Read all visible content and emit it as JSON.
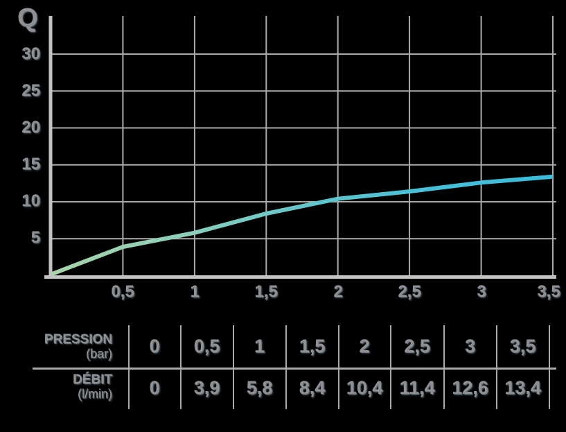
{
  "background": "#000000",
  "chart_data": {
    "type": "line",
    "title": "Q",
    "x": [
      0,
      0.5,
      1,
      1.5,
      2,
      2.5,
      3,
      3.5
    ],
    "series": [
      {
        "name": "debit-vs-pression",
        "values": [
          0,
          3.9,
          5.8,
          8.4,
          10.4,
          11.4,
          12.6,
          13.4
        ]
      }
    ],
    "xlabel": "",
    "ylabel": "",
    "xlim": [
      0,
      3.5
    ],
    "ylim": [
      0,
      35
    ],
    "grid": true,
    "legend": false,
    "yticks": [
      5,
      10,
      15,
      20,
      25,
      30
    ],
    "ytick_labels": [
      "30",
      "25",
      "20",
      "15",
      "10",
      "5"
    ],
    "xtick_labels": [
      "0,5",
      "1",
      "1,5",
      "2",
      "2,5",
      "3",
      "3,5"
    ],
    "colors": {
      "grid": "#ABABAB",
      "axis": "#C3C3C3",
      "text": "#8E9094",
      "line_gradient": [
        "#A6D4A8",
        "#8FCFB9",
        "#64C6CB",
        "#46C0D8",
        "#3ABCDC"
      ]
    }
  },
  "table": {
    "row_pression": {
      "label": "PRESSION",
      "unit": "(bar)",
      "values": [
        "0",
        "0,5",
        "1",
        "1,5",
        "2",
        "2,5",
        "3",
        "3,5"
      ]
    },
    "row_debit": {
      "label": "DÉBIT",
      "unit": "(l/min)",
      "values": [
        "0",
        "3,9",
        "5,8",
        "8,4",
        "10,4",
        "11,4",
        "12,6",
        "13,4"
      ]
    }
  }
}
